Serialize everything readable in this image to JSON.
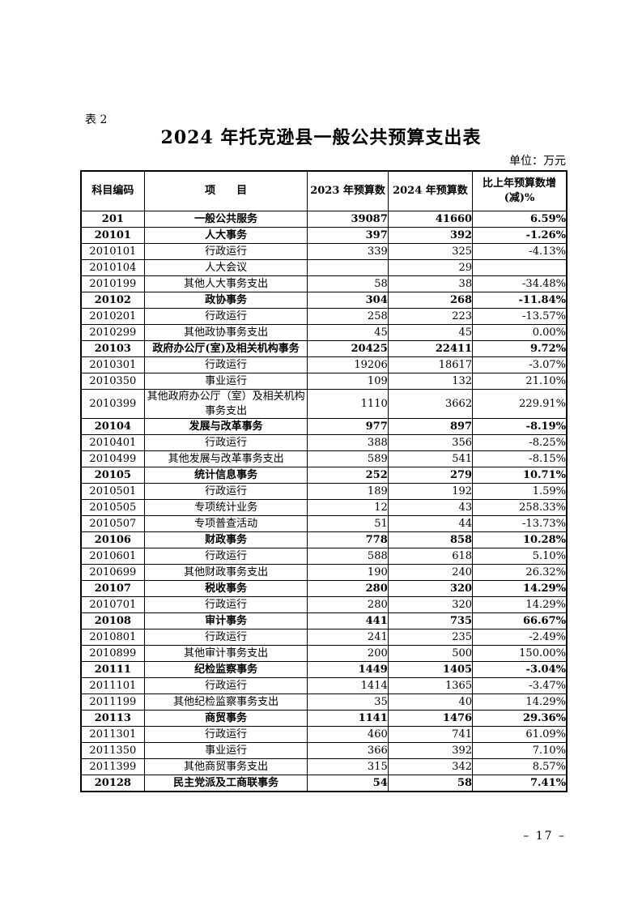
{
  "page": {
    "table_label": "表 2",
    "title": "2024 年托克逊县一般公共预算支出表",
    "unit_note": "单位：万元",
    "page_number": "– 17 –"
  },
  "table": {
    "header": {
      "col_code": "科目编码",
      "col_item": "项　　目",
      "col_2023": "2023 年预算数",
      "col_2024": "2024 年预算数",
      "col_change_line1": "比上年预算数增",
      "col_change_line2": "(减)%"
    },
    "rows": [
      {
        "code": "201",
        "item": "一般公共服务",
        "budget_2023": "39087",
        "budget_2024": "41660",
        "change_pct": "6.59%",
        "bold": true
      },
      {
        "code": "20101",
        "item": "人大事务",
        "budget_2023": "397",
        "budget_2024": "392",
        "change_pct": "-1.26%",
        "bold": true
      },
      {
        "code": "2010101",
        "item": "行政运行",
        "budget_2023": "339",
        "budget_2024": "325",
        "change_pct": "-4.13%",
        "bold": false
      },
      {
        "code": "2010104",
        "item": "人大会议",
        "budget_2023": "",
        "budget_2024": "29",
        "change_pct": "",
        "bold": false
      },
      {
        "code": "2010199",
        "item": "其他人大事务支出",
        "budget_2023": "58",
        "budget_2024": "38",
        "change_pct": "-34.48%",
        "bold": false
      },
      {
        "code": "20102",
        "item": "政协事务",
        "budget_2023": "304",
        "budget_2024": "268",
        "change_pct": "-11.84%",
        "bold": true
      },
      {
        "code": "2010201",
        "item": "行政运行",
        "budget_2023": "258",
        "budget_2024": "223",
        "change_pct": "-13.57%",
        "bold": false
      },
      {
        "code": "2010299",
        "item": "其他政协事务支出",
        "budget_2023": "45",
        "budget_2024": "45",
        "change_pct": "0.00%",
        "bold": false
      },
      {
        "code": "20103",
        "item": "政府办公厅(室)及相关机构事务",
        "budget_2023": "20425",
        "budget_2024": "22411",
        "change_pct": "9.72%",
        "bold": true
      },
      {
        "code": "2010301",
        "item": "行政运行",
        "budget_2023": "19206",
        "budget_2024": "18617",
        "change_pct": "-3.07%",
        "bold": false
      },
      {
        "code": "2010350",
        "item": "事业运行",
        "budget_2023": "109",
        "budget_2024": "132",
        "change_pct": "21.10%",
        "bold": false
      },
      {
        "code": "2010399",
        "item": "其他政府办公厅（室）及相关机构事务支出",
        "budget_2023": "1110",
        "budget_2024": "3662",
        "change_pct": "229.91%",
        "bold": false
      },
      {
        "code": "20104",
        "item": "发展与改革事务",
        "budget_2023": "977",
        "budget_2024": "897",
        "change_pct": "-8.19%",
        "bold": true
      },
      {
        "code": "2010401",
        "item": "行政运行",
        "budget_2023": "388",
        "budget_2024": "356",
        "change_pct": "-8.25%",
        "bold": false
      },
      {
        "code": "2010499",
        "item": "其他发展与改革事务支出",
        "budget_2023": "589",
        "budget_2024": "541",
        "change_pct": "-8.15%",
        "bold": false
      },
      {
        "code": "20105",
        "item": "统计信息事务",
        "budget_2023": "252",
        "budget_2024": "279",
        "change_pct": "10.71%",
        "bold": true
      },
      {
        "code": "2010501",
        "item": "行政运行",
        "budget_2023": "189",
        "budget_2024": "192",
        "change_pct": "1.59%",
        "bold": false
      },
      {
        "code": "2010505",
        "item": "专项统计业务",
        "budget_2023": "12",
        "budget_2024": "43",
        "change_pct": "258.33%",
        "bold": false
      },
      {
        "code": "2010507",
        "item": "专项普查活动",
        "budget_2023": "51",
        "budget_2024": "44",
        "change_pct": "-13.73%",
        "bold": false
      },
      {
        "code": "20106",
        "item": "财政事务",
        "budget_2023": "778",
        "budget_2024": "858",
        "change_pct": "10.28%",
        "bold": true
      },
      {
        "code": "2010601",
        "item": "行政运行",
        "budget_2023": "588",
        "budget_2024": "618",
        "change_pct": "5.10%",
        "bold": false
      },
      {
        "code": "2010699",
        "item": "其他财政事务支出",
        "budget_2023": "190",
        "budget_2024": "240",
        "change_pct": "26.32%",
        "bold": false
      },
      {
        "code": "20107",
        "item": "税收事务",
        "budget_2023": "280",
        "budget_2024": "320",
        "change_pct": "14.29%",
        "bold": true
      },
      {
        "code": "2010701",
        "item": "行政运行",
        "budget_2023": "280",
        "budget_2024": "320",
        "change_pct": "14.29%",
        "bold": false
      },
      {
        "code": "20108",
        "item": "审计事务",
        "budget_2023": "441",
        "budget_2024": "735",
        "change_pct": "66.67%",
        "bold": true
      },
      {
        "code": "2010801",
        "item": "行政运行",
        "budget_2023": "241",
        "budget_2024": "235",
        "change_pct": "-2.49%",
        "bold": false
      },
      {
        "code": "2010899",
        "item": "其他审计事务支出",
        "budget_2023": "200",
        "budget_2024": "500",
        "change_pct": "150.00%",
        "bold": false
      },
      {
        "code": "20111",
        "item": "纪检监察事务",
        "budget_2023": "1449",
        "budget_2024": "1405",
        "change_pct": "-3.04%",
        "bold": true
      },
      {
        "code": "2011101",
        "item": "行政运行",
        "budget_2023": "1414",
        "budget_2024": "1365",
        "change_pct": "-3.47%",
        "bold": false
      },
      {
        "code": "2011199",
        "item": "其他纪检监察事务支出",
        "budget_2023": "35",
        "budget_2024": "40",
        "change_pct": "14.29%",
        "bold": false
      },
      {
        "code": "20113",
        "item": "商贸事务",
        "budget_2023": "1141",
        "budget_2024": "1476",
        "change_pct": "29.36%",
        "bold": true
      },
      {
        "code": "2011301",
        "item": "行政运行",
        "budget_2023": "460",
        "budget_2024": "741",
        "change_pct": "61.09%",
        "bold": false
      },
      {
        "code": "2011350",
        "item": "事业运行",
        "budget_2023": "366",
        "budget_2024": "392",
        "change_pct": "7.10%",
        "bold": false
      },
      {
        "code": "2011399",
        "item": "其他商贸事务支出",
        "budget_2023": "315",
        "budget_2024": "342",
        "change_pct": "8.57%",
        "bold": false
      },
      {
        "code": "20128",
        "item": "民主党派及工商联事务",
        "budget_2023": "54",
        "budget_2024": "58",
        "change_pct": "7.41%",
        "bold": true
      }
    ]
  }
}
